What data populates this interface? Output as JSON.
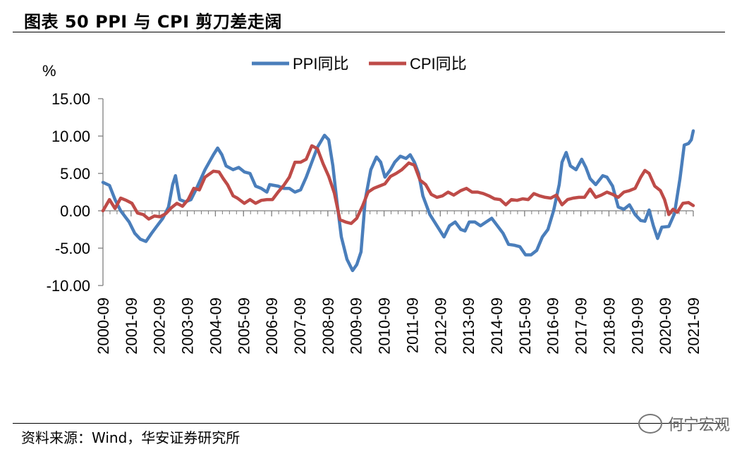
{
  "title": "图表 50   PPI 与 CPI 剪刀差走阔",
  "source": "资料来源：Wind，华安证券研究所",
  "watermark": "何宁宏观",
  "watermark_icon": "wechat-icon",
  "colors": {
    "ppi": "#4a7ebb",
    "cpi": "#be4b48",
    "axis": "#7f7f7f"
  },
  "chart_data": {
    "type": "line",
    "unit_label": "%",
    "ylim": [
      -10,
      15
    ],
    "yticks": [
      15,
      10,
      5,
      0,
      -5,
      -10
    ],
    "ytick_labels": [
      "15.00",
      "10.00",
      "5.00",
      "0.00",
      "-5.00",
      "-10.00"
    ],
    "x_range": [
      2000.67,
      2021.67
    ],
    "xticks": [
      2000.67,
      2001.67,
      2002.67,
      2003.67,
      2004.67,
      2005.67,
      2006.67,
      2007.67,
      2008.67,
      2009.67,
      2010.67,
      2011.67,
      2012.67,
      2013.67,
      2014.67,
      2015.67,
      2016.67,
      2017.67,
      2018.67,
      2019.67,
      2020.67,
      2021.67
    ],
    "xtick_labels": [
      "2000-09",
      "2001-09",
      "2002-09",
      "2003-09",
      "2004-09",
      "2005-09",
      "2006-09",
      "2007-09",
      "2008-09",
      "2009-09",
      "2010-09",
      "2011-09",
      "2012-09",
      "2013-09",
      "2014-09",
      "2015-09",
      "2016-09",
      "2017-09",
      "2018-09",
      "2019-09",
      "2020-09",
      "2021-09"
    ],
    "series": [
      {
        "name": "PPI同比",
        "color": "#4a7ebb",
        "points": [
          [
            2000.67,
            3.8
          ],
          [
            2000.9,
            3.4
          ],
          [
            2001.1,
            1.5
          ],
          [
            2001.3,
            0.0
          ],
          [
            2001.6,
            -1.5
          ],
          [
            2001.8,
            -3.0
          ],
          [
            2002.0,
            -3.8
          ],
          [
            2002.2,
            -4.1
          ],
          [
            2002.4,
            -3.0
          ],
          [
            2002.6,
            -2.0
          ],
          [
            2002.8,
            -1.0
          ],
          [
            2003.0,
            0.5
          ],
          [
            2003.15,
            3.5
          ],
          [
            2003.25,
            4.7
          ],
          [
            2003.4,
            1.5
          ],
          [
            2003.6,
            1.2
          ],
          [
            2003.8,
            1.5
          ],
          [
            2004.0,
            3.0
          ],
          [
            2004.3,
            5.5
          ],
          [
            2004.6,
            7.5
          ],
          [
            2004.75,
            8.4
          ],
          [
            2004.9,
            7.5
          ],
          [
            2005.05,
            6.0
          ],
          [
            2005.3,
            5.5
          ],
          [
            2005.5,
            5.8
          ],
          [
            2005.7,
            5.2
          ],
          [
            2005.9,
            5.0
          ],
          [
            2006.1,
            3.3
          ],
          [
            2006.3,
            3.0
          ],
          [
            2006.5,
            2.5
          ],
          [
            2006.6,
            3.5
          ],
          [
            2006.9,
            3.3
          ],
          [
            2007.1,
            3.0
          ],
          [
            2007.3,
            3.0
          ],
          [
            2007.5,
            2.5
          ],
          [
            2007.7,
            2.8
          ],
          [
            2007.9,
            4.5
          ],
          [
            2008.1,
            6.5
          ],
          [
            2008.3,
            8.5
          ],
          [
            2008.55,
            10.1
          ],
          [
            2008.7,
            9.5
          ],
          [
            2008.85,
            6.0
          ],
          [
            2009.0,
            1.0
          ],
          [
            2009.15,
            -3.5
          ],
          [
            2009.35,
            -6.5
          ],
          [
            2009.55,
            -8.0
          ],
          [
            2009.7,
            -7.2
          ],
          [
            2009.85,
            -5.5
          ],
          [
            2010.0,
            1.5
          ],
          [
            2010.2,
            5.5
          ],
          [
            2010.4,
            7.2
          ],
          [
            2010.55,
            6.5
          ],
          [
            2010.7,
            4.5
          ],
          [
            2010.9,
            5.5
          ],
          [
            2011.05,
            6.5
          ],
          [
            2011.25,
            7.3
          ],
          [
            2011.45,
            7.0
          ],
          [
            2011.6,
            7.5
          ],
          [
            2011.75,
            6.5
          ],
          [
            2011.9,
            5.0
          ],
          [
            2012.05,
            2.0
          ],
          [
            2012.3,
            -0.5
          ],
          [
            2012.55,
            -2.0
          ],
          [
            2012.8,
            -3.5
          ],
          [
            2013.0,
            -2.0
          ],
          [
            2013.2,
            -1.5
          ],
          [
            2013.4,
            -2.5
          ],
          [
            2013.55,
            -2.7
          ],
          [
            2013.7,
            -1.5
          ],
          [
            2013.9,
            -1.5
          ],
          [
            2014.1,
            -2.0
          ],
          [
            2014.3,
            -1.5
          ],
          [
            2014.5,
            -1.0
          ],
          [
            2014.7,
            -2.0
          ],
          [
            2014.9,
            -3.0
          ],
          [
            2015.1,
            -4.5
          ],
          [
            2015.3,
            -4.6
          ],
          [
            2015.5,
            -4.8
          ],
          [
            2015.7,
            -5.9
          ],
          [
            2015.9,
            -5.9
          ],
          [
            2016.1,
            -5.3
          ],
          [
            2016.3,
            -3.5
          ],
          [
            2016.5,
            -2.5
          ],
          [
            2016.7,
            0.0
          ],
          [
            2016.9,
            3.5
          ],
          [
            2017.0,
            6.5
          ],
          [
            2017.15,
            7.8
          ],
          [
            2017.3,
            6.0
          ],
          [
            2017.5,
            5.5
          ],
          [
            2017.7,
            6.9
          ],
          [
            2017.85,
            5.8
          ],
          [
            2018.0,
            4.3
          ],
          [
            2018.2,
            3.5
          ],
          [
            2018.45,
            4.7
          ],
          [
            2018.6,
            4.5
          ],
          [
            2018.8,
            3.3
          ],
          [
            2019.0,
            0.5
          ],
          [
            2019.2,
            0.2
          ],
          [
            2019.4,
            0.8
          ],
          [
            2019.6,
            -0.5
          ],
          [
            2019.8,
            -1.3
          ],
          [
            2019.95,
            -1.4
          ],
          [
            2020.1,
            0.1
          ],
          [
            2020.25,
            -2.0
          ],
          [
            2020.4,
            -3.7
          ],
          [
            2020.55,
            -2.2
          ],
          [
            2020.8,
            -2.1
          ],
          [
            2021.0,
            -0.4
          ],
          [
            2021.2,
            4.4
          ],
          [
            2021.35,
            8.8
          ],
          [
            2021.5,
            9.0
          ],
          [
            2021.6,
            9.5
          ],
          [
            2021.67,
            10.7
          ]
        ]
      },
      {
        "name": "CPI同比",
        "color": "#be4b48",
        "points": [
          [
            2000.67,
            0.0
          ],
          [
            2000.9,
            1.5
          ],
          [
            2001.1,
            0.3
          ],
          [
            2001.3,
            1.7
          ],
          [
            2001.5,
            1.4
          ],
          [
            2001.7,
            1.0
          ],
          [
            2001.9,
            -0.3
          ],
          [
            2002.1,
            -0.5
          ],
          [
            2002.3,
            -1.1
          ],
          [
            2002.5,
            -0.7
          ],
          [
            2002.7,
            -0.8
          ],
          [
            2002.9,
            -0.4
          ],
          [
            2003.1,
            0.4
          ],
          [
            2003.3,
            1.0
          ],
          [
            2003.5,
            0.6
          ],
          [
            2003.7,
            1.5
          ],
          [
            2003.9,
            3.0
          ],
          [
            2004.1,
            2.8
          ],
          [
            2004.3,
            4.5
          ],
          [
            2004.6,
            5.3
          ],
          [
            2004.8,
            5.2
          ],
          [
            2004.95,
            4.3
          ],
          [
            2005.1,
            3.5
          ],
          [
            2005.3,
            2.0
          ],
          [
            2005.45,
            1.7
          ],
          [
            2005.7,
            1.0
          ],
          [
            2005.9,
            1.5
          ],
          [
            2006.1,
            1.0
          ],
          [
            2006.3,
            1.4
          ],
          [
            2006.5,
            1.5
          ],
          [
            2006.7,
            1.5
          ],
          [
            2006.9,
            2.5
          ],
          [
            2007.1,
            3.4
          ],
          [
            2007.3,
            4.5
          ],
          [
            2007.5,
            6.5
          ],
          [
            2007.7,
            6.5
          ],
          [
            2007.9,
            6.9
          ],
          [
            2008.1,
            8.7
          ],
          [
            2008.3,
            8.3
          ],
          [
            2008.5,
            6.3
          ],
          [
            2008.7,
            4.6
          ],
          [
            2008.9,
            2.4
          ],
          [
            2009.1,
            -1.2
          ],
          [
            2009.3,
            -1.5
          ],
          [
            2009.5,
            -1.7
          ],
          [
            2009.7,
            -1.0
          ],
          [
            2009.9,
            0.6
          ],
          [
            2010.1,
            2.5
          ],
          [
            2010.3,
            3.0
          ],
          [
            2010.5,
            3.3
          ],
          [
            2010.7,
            3.6
          ],
          [
            2010.9,
            4.6
          ],
          [
            2011.1,
            5.0
          ],
          [
            2011.3,
            5.5
          ],
          [
            2011.55,
            6.4
          ],
          [
            2011.75,
            6.1
          ],
          [
            2011.95,
            4.1
          ],
          [
            2012.15,
            3.5
          ],
          [
            2012.35,
            2.2
          ],
          [
            2012.55,
            1.8
          ],
          [
            2012.75,
            2.0
          ],
          [
            2012.95,
            2.5
          ],
          [
            2013.15,
            2.1
          ],
          [
            2013.4,
            2.7
          ],
          [
            2013.6,
            3.0
          ],
          [
            2013.8,
            2.5
          ],
          [
            2014.0,
            2.5
          ],
          [
            2014.2,
            2.3
          ],
          [
            2014.4,
            2.0
          ],
          [
            2014.6,
            1.6
          ],
          [
            2014.8,
            1.5
          ],
          [
            2015.0,
            0.8
          ],
          [
            2015.2,
            1.5
          ],
          [
            2015.4,
            1.4
          ],
          [
            2015.6,
            1.6
          ],
          [
            2015.8,
            1.5
          ],
          [
            2016.0,
            2.3
          ],
          [
            2016.2,
            2.0
          ],
          [
            2016.4,
            1.8
          ],
          [
            2016.6,
            1.7
          ],
          [
            2016.8,
            2.1
          ],
          [
            2017.0,
            0.8
          ],
          [
            2017.2,
            1.5
          ],
          [
            2017.4,
            1.7
          ],
          [
            2017.6,
            1.8
          ],
          [
            2017.8,
            1.8
          ],
          [
            2018.0,
            2.9
          ],
          [
            2018.2,
            1.8
          ],
          [
            2018.4,
            2.1
          ],
          [
            2018.6,
            2.5
          ],
          [
            2018.8,
            2.2
          ],
          [
            2019.0,
            1.8
          ],
          [
            2019.2,
            2.5
          ],
          [
            2019.4,
            2.7
          ],
          [
            2019.6,
            3.0
          ],
          [
            2019.8,
            4.5
          ],
          [
            2019.95,
            5.4
          ],
          [
            2020.1,
            5.0
          ],
          [
            2020.3,
            3.3
          ],
          [
            2020.5,
            2.7
          ],
          [
            2020.65,
            1.5
          ],
          [
            2020.8,
            -0.5
          ],
          [
            2020.95,
            0.2
          ],
          [
            2021.1,
            -0.2
          ],
          [
            2021.3,
            1.0
          ],
          [
            2021.5,
            1.1
          ],
          [
            2021.67,
            0.7
          ]
        ]
      }
    ]
  }
}
